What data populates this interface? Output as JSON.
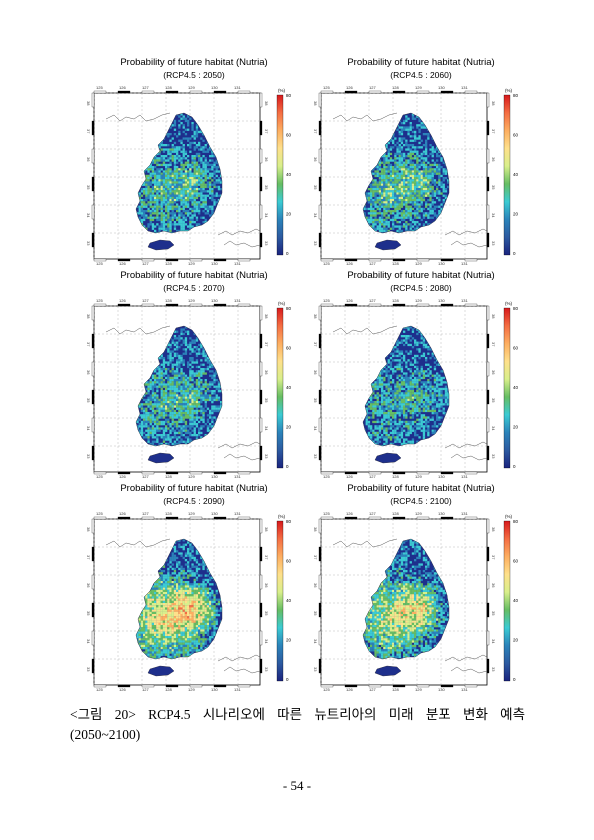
{
  "panels": [
    {
      "title": "Probability of future habitat (Nutria)",
      "subtitle": "(RCP4.5 : 2050)",
      "intensity": 0.35
    },
    {
      "title": "Probability of future habitat (Nutria)",
      "subtitle": "(RCP4.5 : 2060)",
      "intensity": 0.4
    },
    {
      "title": "Probability of future habitat (Nutria)",
      "subtitle": "(RCP4.5 : 2070)",
      "intensity": 0.32
    },
    {
      "title": "Probability of future habitat (Nutria)",
      "subtitle": "(RCP4.5 : 2080)",
      "intensity": 0.25
    },
    {
      "title": "Probability of future habitat (Nutria)",
      "subtitle": "(RCP4.5 : 2090)",
      "intensity": 0.85
    },
    {
      "title": "Probability of future habitat (Nutria)",
      "subtitle": "(RCP4.5 : 2100)",
      "intensity": 0.7
    }
  ],
  "map_axis": {
    "lon_ticks": [
      "125",
      "126",
      "127",
      "128",
      "129",
      "130",
      "131"
    ],
    "lat_ticks": [
      "38",
      "37",
      "36",
      "35",
      "34",
      "33"
    ]
  },
  "colorbar": {
    "unit": "(%)",
    "ticks": [
      "80",
      "60",
      "40",
      "20",
      "0"
    ],
    "colors": [
      "#d7191c",
      "#f46d43",
      "#fdae61",
      "#fee08b",
      "#d9ef8b",
      "#66bd63",
      "#3ccbd3",
      "#2b83ba",
      "#2c5aa0",
      "#1a237e"
    ]
  },
  "caption": {
    "line1": "<그림 20> RCP4.5 시나리오에 따른 뉴트리아의 미래 분포 변화 예측",
    "line2": "(2050~2100)"
  },
  "page_number": "- 54 -"
}
